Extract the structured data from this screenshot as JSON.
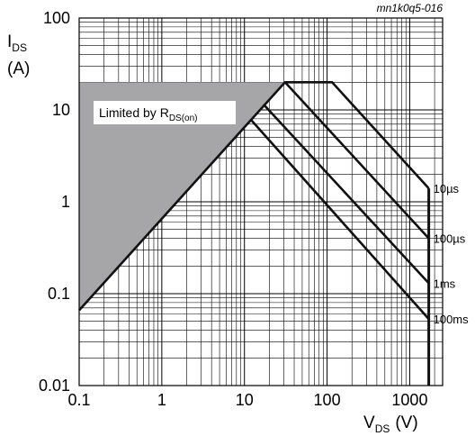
{
  "chart_data": {
    "type": "line",
    "figure_id": "mn1k0q5-016",
    "title": "",
    "ylabel": {
      "main": "I",
      "sub": "DS",
      "unit": "(A)"
    },
    "xlabel": {
      "main": "V",
      "sub": "DS",
      "unit": "(V)"
    },
    "x_scale": "log",
    "y_scale": "log",
    "xlim": [
      0.1,
      2500
    ],
    "ylim": [
      0.01,
      100
    ],
    "x_ticks": [
      {
        "value": 0.1,
        "label": "0.1"
      },
      {
        "value": 1,
        "label": "1"
      },
      {
        "value": 10,
        "label": "10"
      },
      {
        "value": 100,
        "label": "100"
      },
      {
        "value": 1000,
        "label": "1000"
      }
    ],
    "y_ticks": [
      {
        "value": 0.01,
        "label": "0.01"
      },
      {
        "value": 0.1,
        "label": "0.1"
      },
      {
        "value": 1,
        "label": "1"
      },
      {
        "value": 10,
        "label": "10"
      },
      {
        "value": 100,
        "label": "100"
      }
    ],
    "grid": true,
    "region": {
      "label_main": "Limited by R",
      "label_sub": "DS(on)",
      "color": "#a6a6a8",
      "points": [
        [
          0.1,
          0.066
        ],
        [
          31,
          20
        ],
        [
          0.1,
          20
        ]
      ]
    },
    "series": [
      {
        "name": "10µs",
        "points": [
          [
            0.1,
            0.066
          ],
          [
            31,
            20
          ],
          [
            115,
            20
          ],
          [
            1700,
            1.4
          ]
        ]
      },
      {
        "name": "100µs",
        "points": [
          [
            31,
            20
          ],
          [
            1700,
            0.4
          ]
        ]
      },
      {
        "name": "1ms",
        "points": [
          [
            17,
            11.5
          ],
          [
            1700,
            0.13
          ]
        ]
      },
      {
        "name": "100ms",
        "points": [
          [
            12,
            7.8
          ],
          [
            1700,
            0.053
          ]
        ]
      }
    ],
    "vds_limit": {
      "x": 1700,
      "y_from": 0.01,
      "y_to": 1.4
    },
    "line_color": "#111111",
    "grid_color": "#000000"
  }
}
